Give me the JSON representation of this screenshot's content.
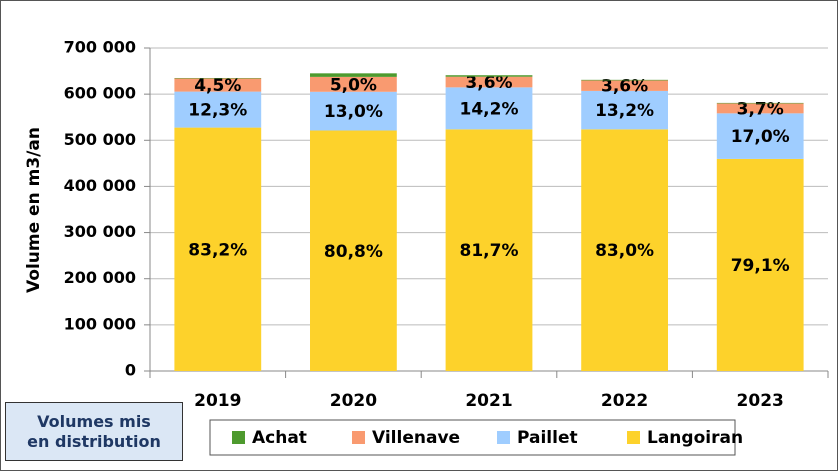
{
  "chart_data": {
    "type": "stacked_bar",
    "annotation": "Volumes mis en distribution",
    "y_label": "Volume en m3/an",
    "categories": [
      "2019",
      "2020",
      "2021",
      "2022",
      "2023"
    ],
    "series": [
      {
        "name": "Langoiran",
        "color": "#fdd22b",
        "values": [
          527500,
          521200,
          523700,
          523700,
          459600
        ],
        "value_labels": [
          "83,2%",
          "80,8%",
          "81,7%",
          "83,0%",
          "79,1%"
        ]
      },
      {
        "name": "Paillet",
        "color": "#9fcdff",
        "values": [
          78000,
          83900,
          91000,
          83300,
          98800
        ],
        "value_labels": [
          "12,3%",
          "13,0%",
          "14,2%",
          "13,2%",
          "17,0%"
        ]
      },
      {
        "name": "Villenave",
        "color": "#f99a70",
        "values": [
          28500,
          32300,
          23100,
          22700,
          21500
        ],
        "value_labels": [
          "4,5%",
          "5,0%",
          "3,6%",
          "3,6%",
          "3,7%"
        ]
      },
      {
        "name": "Achat",
        "color": "#4e9a2e",
        "values": [
          1000,
          7700,
          3200,
          1300,
          1100
        ]
      }
    ],
    "legend_order": [
      "Achat",
      "Villenave",
      "Paillet",
      "Langoiran"
    ],
    "ylim": [
      0,
      700000
    ],
    "yticks": [
      {
        "value": 0,
        "label": "0"
      },
      {
        "value": 100000,
        "label": "100 000"
      },
      {
        "value": 200000,
        "label": "200 000"
      },
      {
        "value": 300000,
        "label": "300 000"
      },
      {
        "value": 400000,
        "label": "400 000"
      },
      {
        "value": 500000,
        "label": "500 000"
      },
      {
        "value": 600000,
        "label": "600 000"
      },
      {
        "value": 700000,
        "label": "700 000"
      }
    ],
    "grid": true
  }
}
